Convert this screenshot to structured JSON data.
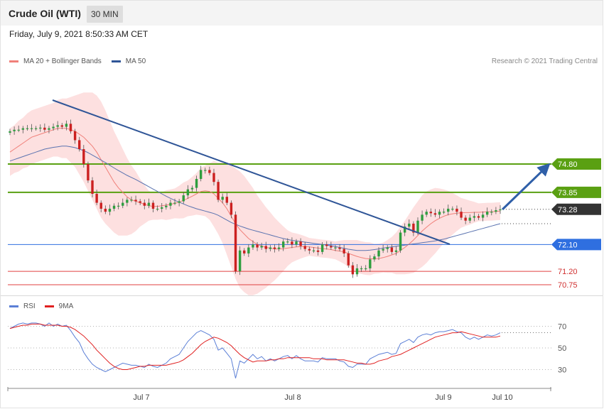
{
  "header": {
    "title": "Crude Oil (WTI)",
    "timeframe": "30 MIN"
  },
  "date_text": "Friday, July 9, 2021 8:50:33 AM CET",
  "legend_main": {
    "ma20_label": "MA 20 + Bollinger Bands",
    "ma50_label": "MA 50",
    "ma20_color": "#f0807a",
    "ma50_color": "#2f5597"
  },
  "research": "Research © 2021 Trading Central",
  "legend_rsi": {
    "rsi_label": "RSI",
    "ma_label": "9MA",
    "rsi_color": "#5b7fd6",
    "ma_color": "#e02020"
  },
  "chart_data": [
    {
      "type": "candlestick",
      "title": "Crude Oil (WTI)",
      "ylim": [
        70.4,
        76.6
      ],
      "x_ticks": [
        "Jul 7",
        "Jul 8",
        "Jul 9",
        "Jul 10"
      ],
      "levels": [
        {
          "value": 74.8,
          "label": "74.80",
          "kind": "resistance",
          "color": "#5aa012"
        },
        {
          "value": 73.85,
          "label": "73.85",
          "kind": "resistance",
          "color": "#5aa012"
        },
        {
          "value": 73.28,
          "label": "73.28",
          "kind": "last",
          "color": "#333333"
        },
        {
          "value": 72.1,
          "label": "72.10",
          "kind": "pivot",
          "color": "#2f6fe0"
        },
        {
          "value": 71.2,
          "label": "71.20",
          "kind": "support",
          "color": "#e04040"
        },
        {
          "value": 70.75,
          "label": "70.75",
          "kind": "support",
          "color": "#e04040"
        }
      ],
      "close": [
        75.9,
        75.95,
        75.95,
        76.0,
        76.0,
        76.0,
        76.0,
        76.02,
        75.95,
        76.0,
        76.05,
        76.1,
        76.05,
        76.15,
        75.9,
        75.6,
        75.3,
        74.8,
        74.25,
        73.8,
        73.5,
        73.3,
        73.2,
        73.3,
        73.4,
        73.4,
        73.5,
        73.6,
        73.6,
        73.55,
        73.5,
        73.4,
        73.5,
        73.3,
        73.3,
        73.35,
        73.4,
        73.5,
        73.5,
        73.55,
        73.75,
        73.95,
        74.0,
        74.3,
        74.6,
        74.6,
        74.5,
        74.2,
        73.6,
        73.7,
        73.5,
        73.1,
        71.2,
        71.9,
        71.8,
        72.0,
        72.1,
        72.0,
        72.05,
        71.95,
        72.0,
        71.95,
        72.0,
        72.2,
        72.2,
        72.1,
        72.2,
        72.05,
        71.95,
        71.9,
        71.9,
        71.85,
        72.1,
        72.05,
        72.0,
        72.0,
        71.95,
        71.8,
        71.4,
        71.1,
        71.3,
        71.3,
        71.3,
        71.6,
        71.7,
        71.9,
        71.95,
        72.0,
        71.85,
        71.9,
        72.5,
        72.7,
        72.8,
        72.5,
        72.9,
        73.1,
        73.2,
        73.15,
        73.1,
        73.2,
        73.2,
        73.3,
        73.3,
        73.2,
        73.0,
        72.9,
        73.0,
        73.05,
        73.0,
        73.1,
        73.2,
        73.2,
        73.25,
        73.28
      ],
      "ma20": [
        75.2,
        75.3,
        75.4,
        75.5,
        75.6,
        75.7,
        75.75,
        75.8,
        75.85,
        75.9,
        75.95,
        76.0,
        76.0,
        76.0,
        75.95,
        75.9,
        75.8,
        75.7,
        75.55,
        75.4,
        75.2,
        74.95,
        74.7,
        74.45,
        74.2,
        74.0,
        73.85,
        73.7,
        73.6,
        73.55,
        73.5,
        73.45,
        73.4,
        73.38,
        73.38,
        73.4,
        73.42,
        73.45,
        73.48,
        73.52,
        73.58,
        73.65,
        73.72,
        73.8,
        73.88,
        73.9,
        73.88,
        73.8,
        73.65,
        73.5,
        73.3,
        73.05,
        72.8,
        72.6,
        72.45,
        72.3,
        72.2,
        72.1,
        72.05,
        72.0,
        71.98,
        71.95,
        71.95,
        71.96,
        71.98,
        72.0,
        72.02,
        72.03,
        72.03,
        72.02,
        72.0,
        71.98,
        71.96,
        71.95,
        71.93,
        71.9,
        71.88,
        71.85,
        71.8,
        71.75,
        71.7,
        71.66,
        71.63,
        71.62,
        71.62,
        71.63,
        71.66,
        71.7,
        71.75,
        71.8,
        71.9,
        72.0,
        72.12,
        72.25,
        72.4,
        72.55,
        72.68,
        72.8,
        72.9,
        72.98,
        73.05,
        73.1,
        73.13,
        73.15,
        73.16,
        73.17,
        73.17,
        73.18,
        73.18,
        73.19,
        73.2,
        73.2,
        73.21,
        73.22
      ],
      "ma50": [
        74.9,
        74.95,
        75.0,
        75.05,
        75.1,
        75.15,
        75.2,
        75.25,
        75.3,
        75.33,
        75.36,
        75.38,
        75.4,
        75.4,
        75.38,
        75.35,
        75.3,
        75.25,
        75.18,
        75.1,
        75.02,
        74.93,
        74.85,
        74.76,
        74.67,
        74.58,
        74.5,
        74.42,
        74.35,
        74.28,
        74.2,
        74.12,
        74.04,
        73.96,
        73.88,
        73.8,
        73.72,
        73.65,
        73.58,
        73.52,
        73.46,
        73.4,
        73.35,
        73.3,
        73.26,
        73.22,
        73.18,
        73.14,
        73.08,
        73.0,
        72.92,
        72.84,
        72.78,
        72.72,
        72.67,
        72.62,
        72.58,
        72.54,
        72.5,
        72.46,
        72.42,
        72.38,
        72.34,
        72.3,
        72.27,
        72.24,
        72.22,
        72.2,
        72.18,
        72.16,
        72.14,
        72.12,
        72.1,
        72.08,
        72.06,
        72.03,
        72.0,
        71.97,
        71.94,
        71.92,
        71.9,
        71.9,
        71.9,
        71.91,
        71.93,
        71.95,
        71.98,
        72.0,
        72.02,
        72.04,
        72.06,
        72.08,
        72.1,
        72.12,
        72.14,
        72.16,
        72.18,
        72.2,
        72.22,
        72.25,
        72.28,
        72.32,
        72.36,
        72.4,
        72.44,
        72.48,
        72.52,
        72.56,
        72.6,
        72.64,
        72.68,
        72.72,
        72.76,
        72.8
      ],
      "bb_width": [
        0.8,
        0.8,
        0.85,
        0.85,
        0.9,
        0.9,
        0.9,
        0.9,
        0.9,
        0.9,
        0.9,
        0.95,
        1.0,
        1.0,
        1.1,
        1.2,
        1.35,
        1.5,
        1.65,
        1.8,
        1.9,
        1.95,
        1.9,
        1.8,
        1.7,
        1.6,
        1.45,
        1.3,
        1.15,
        1.0,
        0.8,
        0.65,
        0.5,
        0.45,
        0.45,
        0.45,
        0.5,
        0.5,
        0.5,
        0.55,
        0.6,
        0.6,
        0.65,
        0.7,
        0.8,
        0.85,
        0.95,
        1.1,
        1.2,
        1.35,
        1.55,
        1.7,
        1.85,
        1.95,
        1.95,
        1.9,
        1.8,
        1.65,
        1.5,
        1.35,
        1.2,
        1.05,
        0.9,
        0.75,
        0.6,
        0.5,
        0.45,
        0.4,
        0.35,
        0.3,
        0.3,
        0.3,
        0.3,
        0.3,
        0.3,
        0.3,
        0.35,
        0.4,
        0.45,
        0.5,
        0.55,
        0.55,
        0.55,
        0.55,
        0.5,
        0.5,
        0.5,
        0.55,
        0.6,
        0.7,
        0.8,
        0.9,
        1.0,
        1.1,
        1.15,
        1.2,
        1.2,
        1.15,
        1.1,
        1.0,
        0.9,
        0.8,
        0.7,
        0.6,
        0.5,
        0.45,
        0.4,
        0.35,
        0.3,
        0.3,
        0.3,
        0.3,
        0.3,
        0.3
      ]
    },
    {
      "type": "line",
      "title": "RSI",
      "ylim": [
        15,
        85
      ],
      "y_ticks": [
        30,
        50,
        70
      ],
      "series": [
        {
          "name": "RSI",
          "values": [
            68,
            70,
            72,
            73,
            72,
            73,
            73,
            72,
            70,
            73,
            70,
            72,
            70,
            71,
            66,
            60,
            55,
            46,
            40,
            35,
            32,
            30,
            28,
            30,
            32,
            34,
            36,
            35,
            34,
            34,
            33,
            32,
            35,
            33,
            32,
            34,
            36,
            40,
            42,
            44,
            50,
            56,
            60,
            64,
            66,
            64,
            62,
            58,
            48,
            50,
            45,
            40,
            22,
            38,
            36,
            40,
            44,
            40,
            42,
            38,
            40,
            38,
            40,
            42,
            43,
            40,
            43,
            40,
            38,
            38,
            38,
            37,
            41,
            40,
            40,
            40,
            38,
            37,
            33,
            32,
            35,
            35,
            35,
            40,
            42,
            44,
            45,
            46,
            44,
            45,
            54,
            56,
            58,
            55,
            60,
            62,
            63,
            62,
            64,
            65,
            65,
            66,
            67,
            65,
            64,
            60,
            58,
            60,
            58,
            60,
            62,
            61,
            62,
            64
          ]
        },
        {
          "name": "9MA",
          "values": [
            68,
            69,
            70,
            71,
            71,
            72,
            72,
            72,
            71,
            71,
            71,
            71,
            70,
            70,
            69,
            67,
            64,
            61,
            57,
            53,
            48,
            44,
            40,
            36,
            33,
            31,
            30,
            30,
            31,
            32,
            33,
            33,
            34,
            34,
            34,
            34,
            34,
            35,
            36,
            37,
            39,
            42,
            45,
            49,
            53,
            56,
            58,
            60,
            59,
            57,
            55,
            52,
            48,
            44,
            41,
            39,
            37,
            38,
            38,
            38,
            39,
            39,
            40,
            40,
            41,
            41,
            41,
            41,
            41,
            41,
            40,
            40,
            40,
            39,
            39,
            39,
            39,
            39,
            38,
            37,
            36,
            36,
            35,
            35,
            36,
            38,
            39,
            40,
            42,
            43,
            44,
            46,
            48,
            50,
            52,
            54,
            56,
            58,
            60,
            61,
            62,
            63,
            64,
            64,
            65,
            64,
            63,
            62,
            61,
            60,
            60,
            60,
            60,
            61
          ]
        }
      ],
      "ma_hidden": [
        60,
        60,
        60
      ]
    }
  ]
}
